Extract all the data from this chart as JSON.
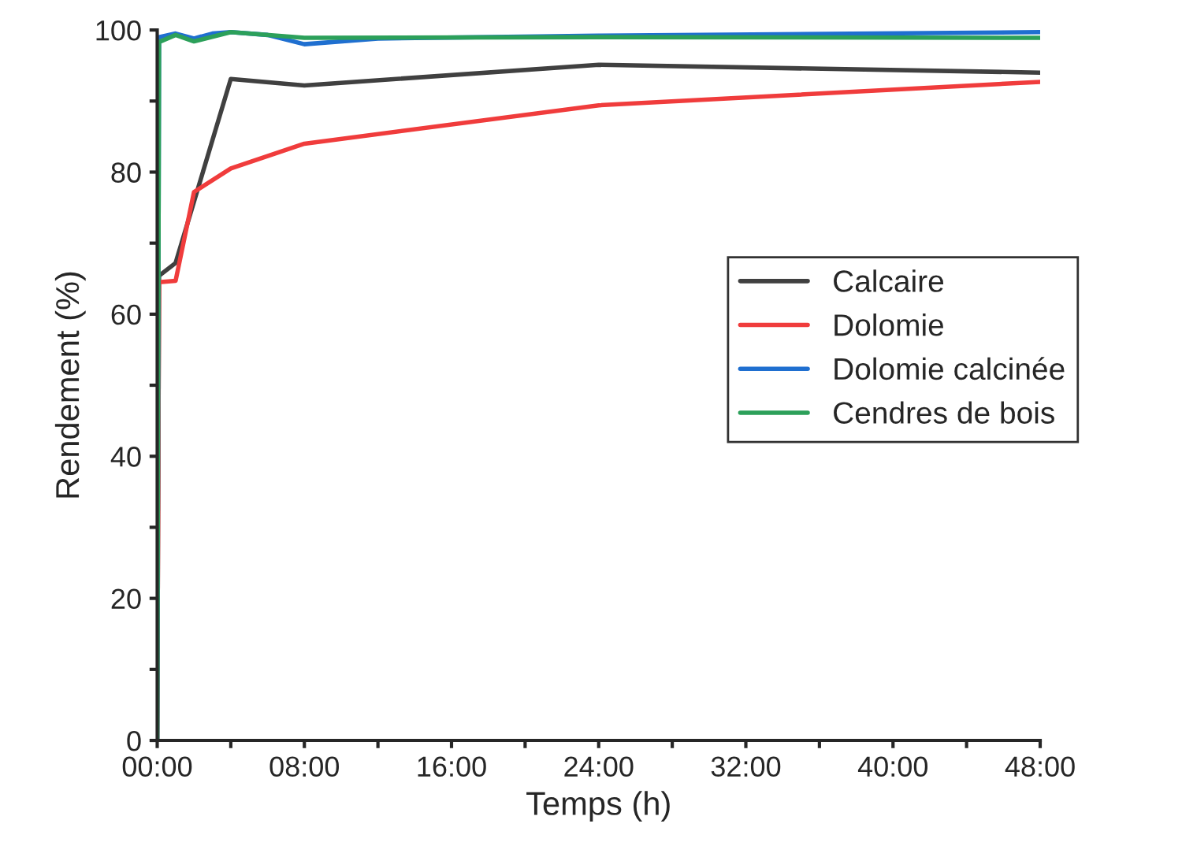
{
  "chart_data": {
    "type": "line",
    "xlabel": "Temps (h)",
    "ylabel": "Rendement (%)",
    "xlim": [
      0,
      48
    ],
    "ylim": [
      0,
      100
    ],
    "xticks": [
      {
        "value": 0,
        "label": "00:00"
      },
      {
        "value": 4,
        "label": null
      },
      {
        "value": 8,
        "label": "08:00"
      },
      {
        "value": 12,
        "label": null
      },
      {
        "value": 16,
        "label": "16:00"
      },
      {
        "value": 20,
        "label": null
      },
      {
        "value": 24,
        "label": "24:00"
      },
      {
        "value": 28,
        "label": null
      },
      {
        "value": 32,
        "label": "32:00"
      },
      {
        "value": 36,
        "label": null
      },
      {
        "value": 40,
        "label": "40:00"
      },
      {
        "value": 44,
        "label": null
      },
      {
        "value": 48,
        "label": "48:00"
      }
    ],
    "yticks": [
      0,
      {
        "value": 10,
        "label": null
      },
      20,
      {
        "value": 30,
        "label": null
      },
      40,
      {
        "value": 50,
        "label": null
      },
      60,
      {
        "value": 70,
        "label": null
      },
      80,
      {
        "value": 90,
        "label": null
      },
      100
    ],
    "grid": false,
    "legend": "right",
    "marker": "none",
    "line_style": "solid",
    "series": [
      {
        "name": "Calcaire",
        "color": "#404040",
        "x": [
          0,
          0.1,
          1,
          4,
          8,
          24,
          48
        ],
        "values": [
          0,
          65.4,
          67.2,
          93.1,
          92.2,
          95.1,
          94.0
        ]
      },
      {
        "name": "Dolomie",
        "color": "#f03c3c",
        "x": [
          0,
          0.1,
          1,
          2,
          4,
          8,
          24,
          48
        ],
        "values": [
          0,
          64.5,
          64.7,
          77.2,
          80.5,
          84.0,
          89.4,
          92.7
        ]
      },
      {
        "name": "Dolomie calcinée",
        "color": "#1f6fd0",
        "x": [
          0,
          0.1,
          1,
          2,
          3,
          4,
          6,
          8,
          12,
          24,
          48
        ],
        "values": [
          0,
          99.0,
          99.5,
          98.8,
          99.5,
          99.7,
          99.3,
          98.0,
          98.8,
          99.2,
          99.7
        ]
      },
      {
        "name": "Cendres de bois",
        "color": "#2ca05a",
        "x": [
          0,
          0.1,
          1,
          2,
          4,
          8,
          24,
          48
        ],
        "values": [
          0,
          98.3,
          99.3,
          98.4,
          99.7,
          98.9,
          99.0,
          98.9
        ]
      }
    ]
  }
}
